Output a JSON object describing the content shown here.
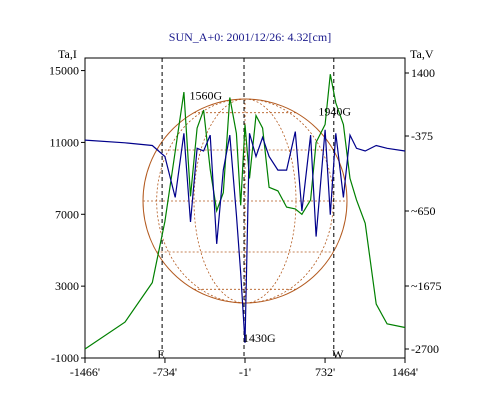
{
  "chart_data": {
    "type": "line",
    "title": "SUN_A+0: 2001/12/26: 4.32[cm]",
    "x": [
      -1466,
      -1100,
      -850,
      -734,
      -640,
      -560,
      -500,
      -440,
      -380,
      -320,
      -260,
      -200,
      -140,
      -80,
      -40,
      -1,
      40,
      100,
      160,
      220,
      300,
      380,
      460,
      520,
      600,
      650,
      732,
      780,
      830,
      900,
      960,
      1020,
      1100,
      1200,
      1300,
      1464
    ],
    "xticks": [
      -1466,
      -734,
      -1,
      732,
      1464
    ],
    "xtick_labels": [
      "-1466'",
      "-734'",
      "-1'",
      "732'",
      "1464'"
    ],
    "left_axis": {
      "label": "Ta,I",
      "ticks": [
        15000,
        11000,
        7000,
        3000,
        -1000
      ],
      "range": [
        -1000,
        15700
      ]
    },
    "right_axis": {
      "label": "Ta,V",
      "ticks": [
        1400,
        -375,
        -650,
        -1675,
        -2700
      ],
      "tick_labels": [
        "1400",
        "-375",
        "~650",
        "~1675",
        "-2700"
      ],
      "range": [
        -2700,
        1400
      ]
    },
    "series": [
      {
        "axis": "left",
        "color": "#008000",
        "values": [
          -500,
          1000,
          3200,
          6600,
          10500,
          13800,
          8000,
          11800,
          12800,
          9500,
          7200,
          8200,
          13500,
          11500,
          7500,
          12000,
          9000,
          12500,
          11800,
          8500,
          8300,
          7400,
          7300,
          7000,
          7800,
          11000,
          12000,
          14800,
          13200,
          12000,
          9000,
          7800,
          6500,
          2000,
          900,
          700
        ]
      },
      {
        "axis": "right",
        "color": "#00008b",
        "values": [
          -390,
          -400,
          -410,
          -450,
          -600,
          -300,
          -800,
          -420,
          -430,
          -350,
          -1100,
          -500,
          -350,
          -700,
          -1500,
          -2600,
          -300,
          -450,
          -380,
          -450,
          -500,
          -500,
          -250,
          -650,
          -350,
          -1000,
          -200,
          -700,
          -300,
          -600,
          -350,
          -420,
          -430,
          -410,
          -420,
          -430
        ]
      }
    ],
    "annotations": [
      {
        "text": "1560G",
        "x": -360,
        "y": 13400
      },
      {
        "text": "1940G",
        "x": 820,
        "y": 12500
      },
      {
        "text": "1430G",
        "x": 130,
        "y": -100
      },
      {
        "text": "E",
        "x": -770,
        "y": -1000
      },
      {
        "text": "W",
        "x": 850,
        "y": -1000
      }
    ],
    "limb_markers": [
      -760,
      -10,
      812
    ]
  }
}
